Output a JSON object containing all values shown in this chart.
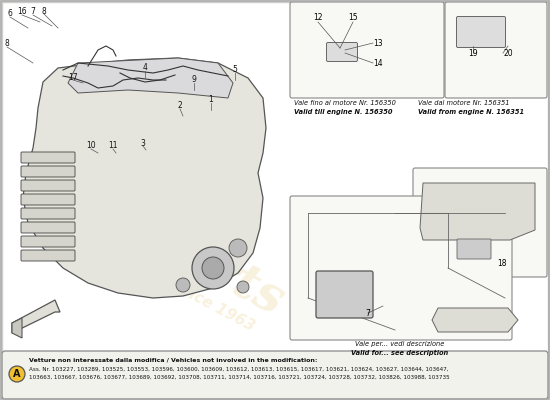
{
  "bg_color": "#f0f0eb",
  "main_bg": "#ffffff",
  "border_color": "#cccccc",
  "text_color": "#111111",
  "watermark_color": "#d4a020",
  "note_box1_title_it": "Vale fino al motore Nr. 156350",
  "note_box1_title_en": "Valid till engine N. 156350",
  "note_box2_title_it": "Vale dal motore Nr. 156351",
  "note_box2_title_en": "Valid from engine N. 156351",
  "note_box3_title_it": "Vale per... vedi descrizione",
  "note_box3_title_en": "Valid for... see description",
  "bottom_label_bold": "Vetture non interessate dalla modifica / Vehicles not involved in the modification:",
  "bottom_label_1": "Ass. Nr. 103227, 103289, 103525, 103553, 103596, 103600, 103609, 103612, 103613, 103615, 103617, 103621, 103624, 103627, 103644, 103647,",
  "bottom_label_2": "103663, 103667, 103676, 103677, 103689, 103692, 103708, 103711, 103714, 103716, 103721, 103724, 103728, 103732, 103826, 103988, 103735",
  "circle_label": "A"
}
